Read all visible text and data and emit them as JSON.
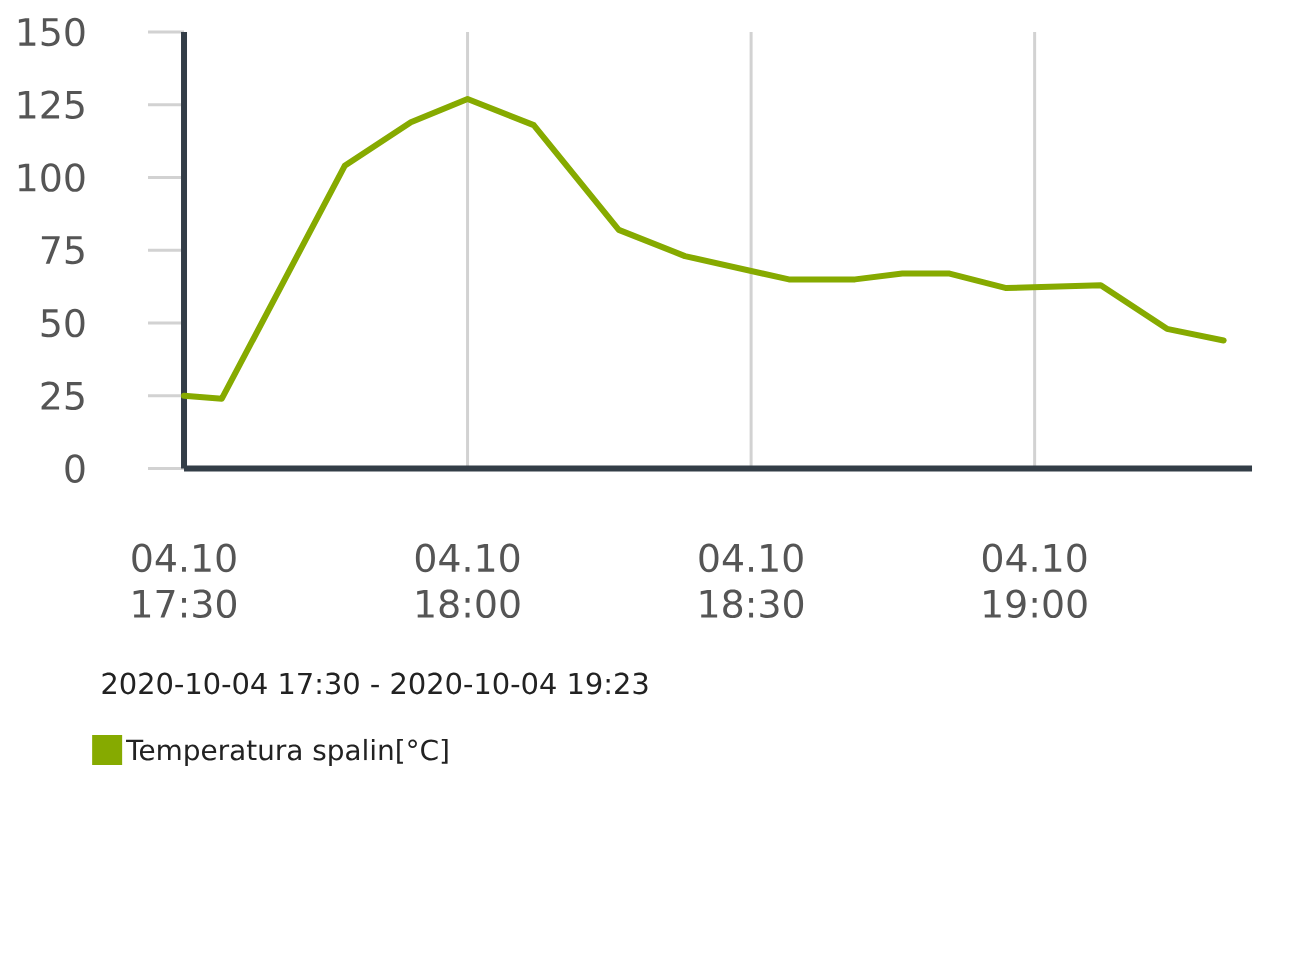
{
  "chart_data": {
    "type": "line",
    "subtitle": "2020-10-04 17:30 - 2020-10-04 19:23",
    "x": [
      "2020-10-04T17:30",
      "2020-10-04T17:34",
      "2020-10-04T17:47",
      "2020-10-04T17:54",
      "2020-10-04T18:00",
      "2020-10-04T18:07",
      "2020-10-04T18:16",
      "2020-10-04T18:23",
      "2020-10-04T18:34",
      "2020-10-04T18:41",
      "2020-10-04T18:46",
      "2020-10-04T18:51",
      "2020-10-04T18:57",
      "2020-10-04T19:07",
      "2020-10-04T19:14",
      "2020-10-04T19:20"
    ],
    "series": [
      {
        "name": "Temperatura spalin[°C]",
        "color": "#86aa00",
        "values": [
          25,
          24,
          104,
          119,
          127,
          118,
          82,
          73,
          65,
          65,
          67,
          67,
          62,
          63,
          48,
          44
        ]
      }
    ],
    "xlim": [
      "2020-10-04T17:30",
      "2020-10-04T19:23"
    ],
    "xticks": [
      {
        "value": "2020-10-04T17:30",
        "label": "04.10 17:30"
      },
      {
        "value": "2020-10-04T18:00",
        "label": "04.10 18:00"
      },
      {
        "value": "2020-10-04T18:30",
        "label": "04.10 18:30"
      },
      {
        "value": "2020-10-04T19:00",
        "label": "04.10 19:00"
      }
    ],
    "ylim": [
      0,
      150
    ],
    "yticks": [
      0,
      25,
      50,
      75,
      100,
      125,
      150
    ],
    "grid": "x",
    "legend": "bottom left",
    "line_style": "solid"
  }
}
